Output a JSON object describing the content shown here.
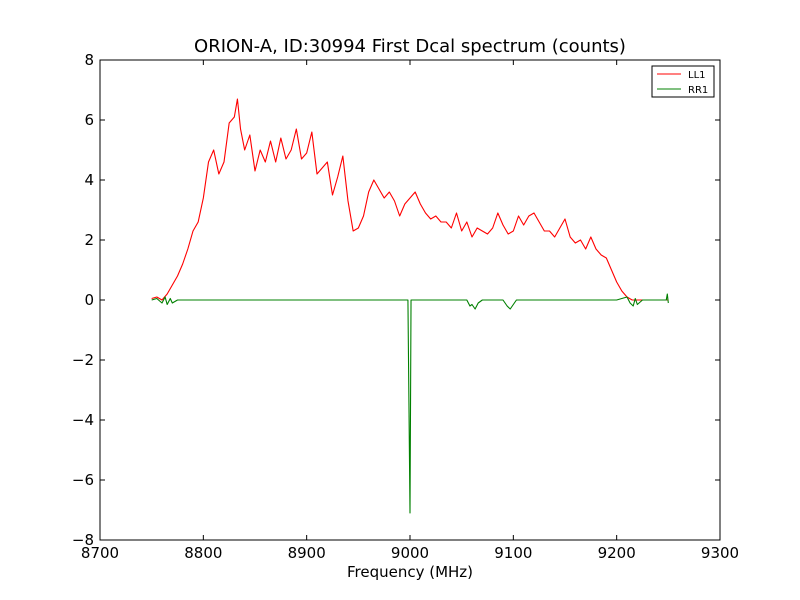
{
  "chart_data": {
    "type": "line",
    "title": "ORION-A, ID:30994 First Dcal spectrum (counts)",
    "xlabel": "Frequency (MHz)",
    "ylabel": "",
    "xlim": [
      8700,
      9300
    ],
    "ylim": [
      -8,
      8
    ],
    "xticks": [
      8700,
      8800,
      8900,
      9000,
      9100,
      9200,
      9300
    ],
    "yticks": [
      -8,
      -6,
      -4,
      -2,
      0,
      2,
      4,
      6,
      8
    ],
    "xtick_labels": [
      "8700",
      "8800",
      "8900",
      "9000",
      "9100",
      "9200",
      "9300"
    ],
    "ytick_labels": [
      "−8",
      "−6",
      "−4",
      "−2",
      "0",
      "2",
      "4",
      "6",
      "8"
    ],
    "grid": false,
    "legend_position": "top-right",
    "series": [
      {
        "name": "LL1",
        "color": "#ff0000",
        "x": [
          8750,
          8755,
          8760,
          8765,
          8770,
          8775,
          8780,
          8785,
          8790,
          8795,
          8800,
          8805,
          8810,
          8815,
          8820,
          8825,
          8830,
          8833,
          8836,
          8840,
          8845,
          8850,
          8855,
          8860,
          8865,
          8870,
          8875,
          8880,
          8885,
          8890,
          8895,
          8900,
          8905,
          8910,
          8915,
          8920,
          8925,
          8930,
          8935,
          8940,
          8945,
          8950,
          8955,
          8960,
          8965,
          8970,
          8975,
          8980,
          8985,
          8990,
          8995,
          9000,
          9005,
          9010,
          9015,
          9020,
          9025,
          9030,
          9035,
          9040,
          9045,
          9050,
          9055,
          9060,
          9065,
          9070,
          9075,
          9080,
          9085,
          9090,
          9095,
          9100,
          9105,
          9110,
          9115,
          9120,
          9125,
          9130,
          9135,
          9140,
          9145,
          9150,
          9155,
          9160,
          9165,
          9170,
          9175,
          9180,
          9185,
          9190,
          9195,
          9200,
          9205,
          9210,
          9215,
          9220,
          9225,
          9230,
          9235,
          9240,
          9245,
          9250
        ],
        "values": [
          0.05,
          0.1,
          0.0,
          0.2,
          0.5,
          0.8,
          1.2,
          1.7,
          2.3,
          2.6,
          3.4,
          4.6,
          5.0,
          4.2,
          4.6,
          5.9,
          6.1,
          6.7,
          5.7,
          5.0,
          5.5,
          4.3,
          5.0,
          4.6,
          5.3,
          4.6,
          5.4,
          4.7,
          5.0,
          5.7,
          4.7,
          4.9,
          5.6,
          4.2,
          4.4,
          4.6,
          3.5,
          4.1,
          4.8,
          3.3,
          2.3,
          2.4,
          2.8,
          3.6,
          4.0,
          3.7,
          3.4,
          3.6,
          3.3,
          2.8,
          3.2,
          3.4,
          3.6,
          3.2,
          2.9,
          2.7,
          2.8,
          2.6,
          2.6,
          2.4,
          2.9,
          2.3,
          2.6,
          2.1,
          2.4,
          2.3,
          2.2,
          2.4,
          2.9,
          2.5,
          2.2,
          2.3,
          2.8,
          2.5,
          2.8,
          2.9,
          2.6,
          2.3,
          2.3,
          2.1,
          2.4,
          2.7,
          2.1,
          1.9,
          2.0,
          1.7,
          2.1,
          1.7,
          1.5,
          1.4,
          1.0,
          0.6,
          0.3,
          0.1,
          0.0,
          0.0,
          0.0,
          0.0,
          0.0,
          0.0,
          0.0,
          0.0
        ]
      },
      {
        "name": "RR1",
        "color": "#008000",
        "x": [
          8750,
          8755,
          8760,
          8763,
          8765,
          8768,
          8770,
          8775,
          8780,
          8800,
          8850,
          8900,
          8950,
          8998,
          9000,
          9001,
          9003,
          9050,
          9055,
          9058,
          9060,
          9063,
          9066,
          9070,
          9090,
          9094,
          9097,
          9100,
          9103,
          9110,
          9150,
          9200,
          9210,
          9213,
          9216,
          9218,
          9220,
          9225,
          9230,
          9240,
          9248,
          9249,
          9250
        ],
        "values": [
          0.0,
          0.05,
          -0.1,
          0.1,
          -0.15,
          0.05,
          -0.1,
          0.0,
          0.0,
          0.0,
          0.0,
          0.0,
          0.0,
          0.0,
          -7.1,
          0.0,
          0.0,
          0.0,
          0.0,
          -0.2,
          -0.15,
          -0.3,
          -0.1,
          0.0,
          0.0,
          -0.2,
          -0.3,
          -0.15,
          0.0,
          0.0,
          0.0,
          0.0,
          0.1,
          -0.1,
          -0.2,
          0.05,
          -0.15,
          0.0,
          0.0,
          0.0,
          0.0,
          0.2,
          -0.1
        ]
      }
    ]
  }
}
